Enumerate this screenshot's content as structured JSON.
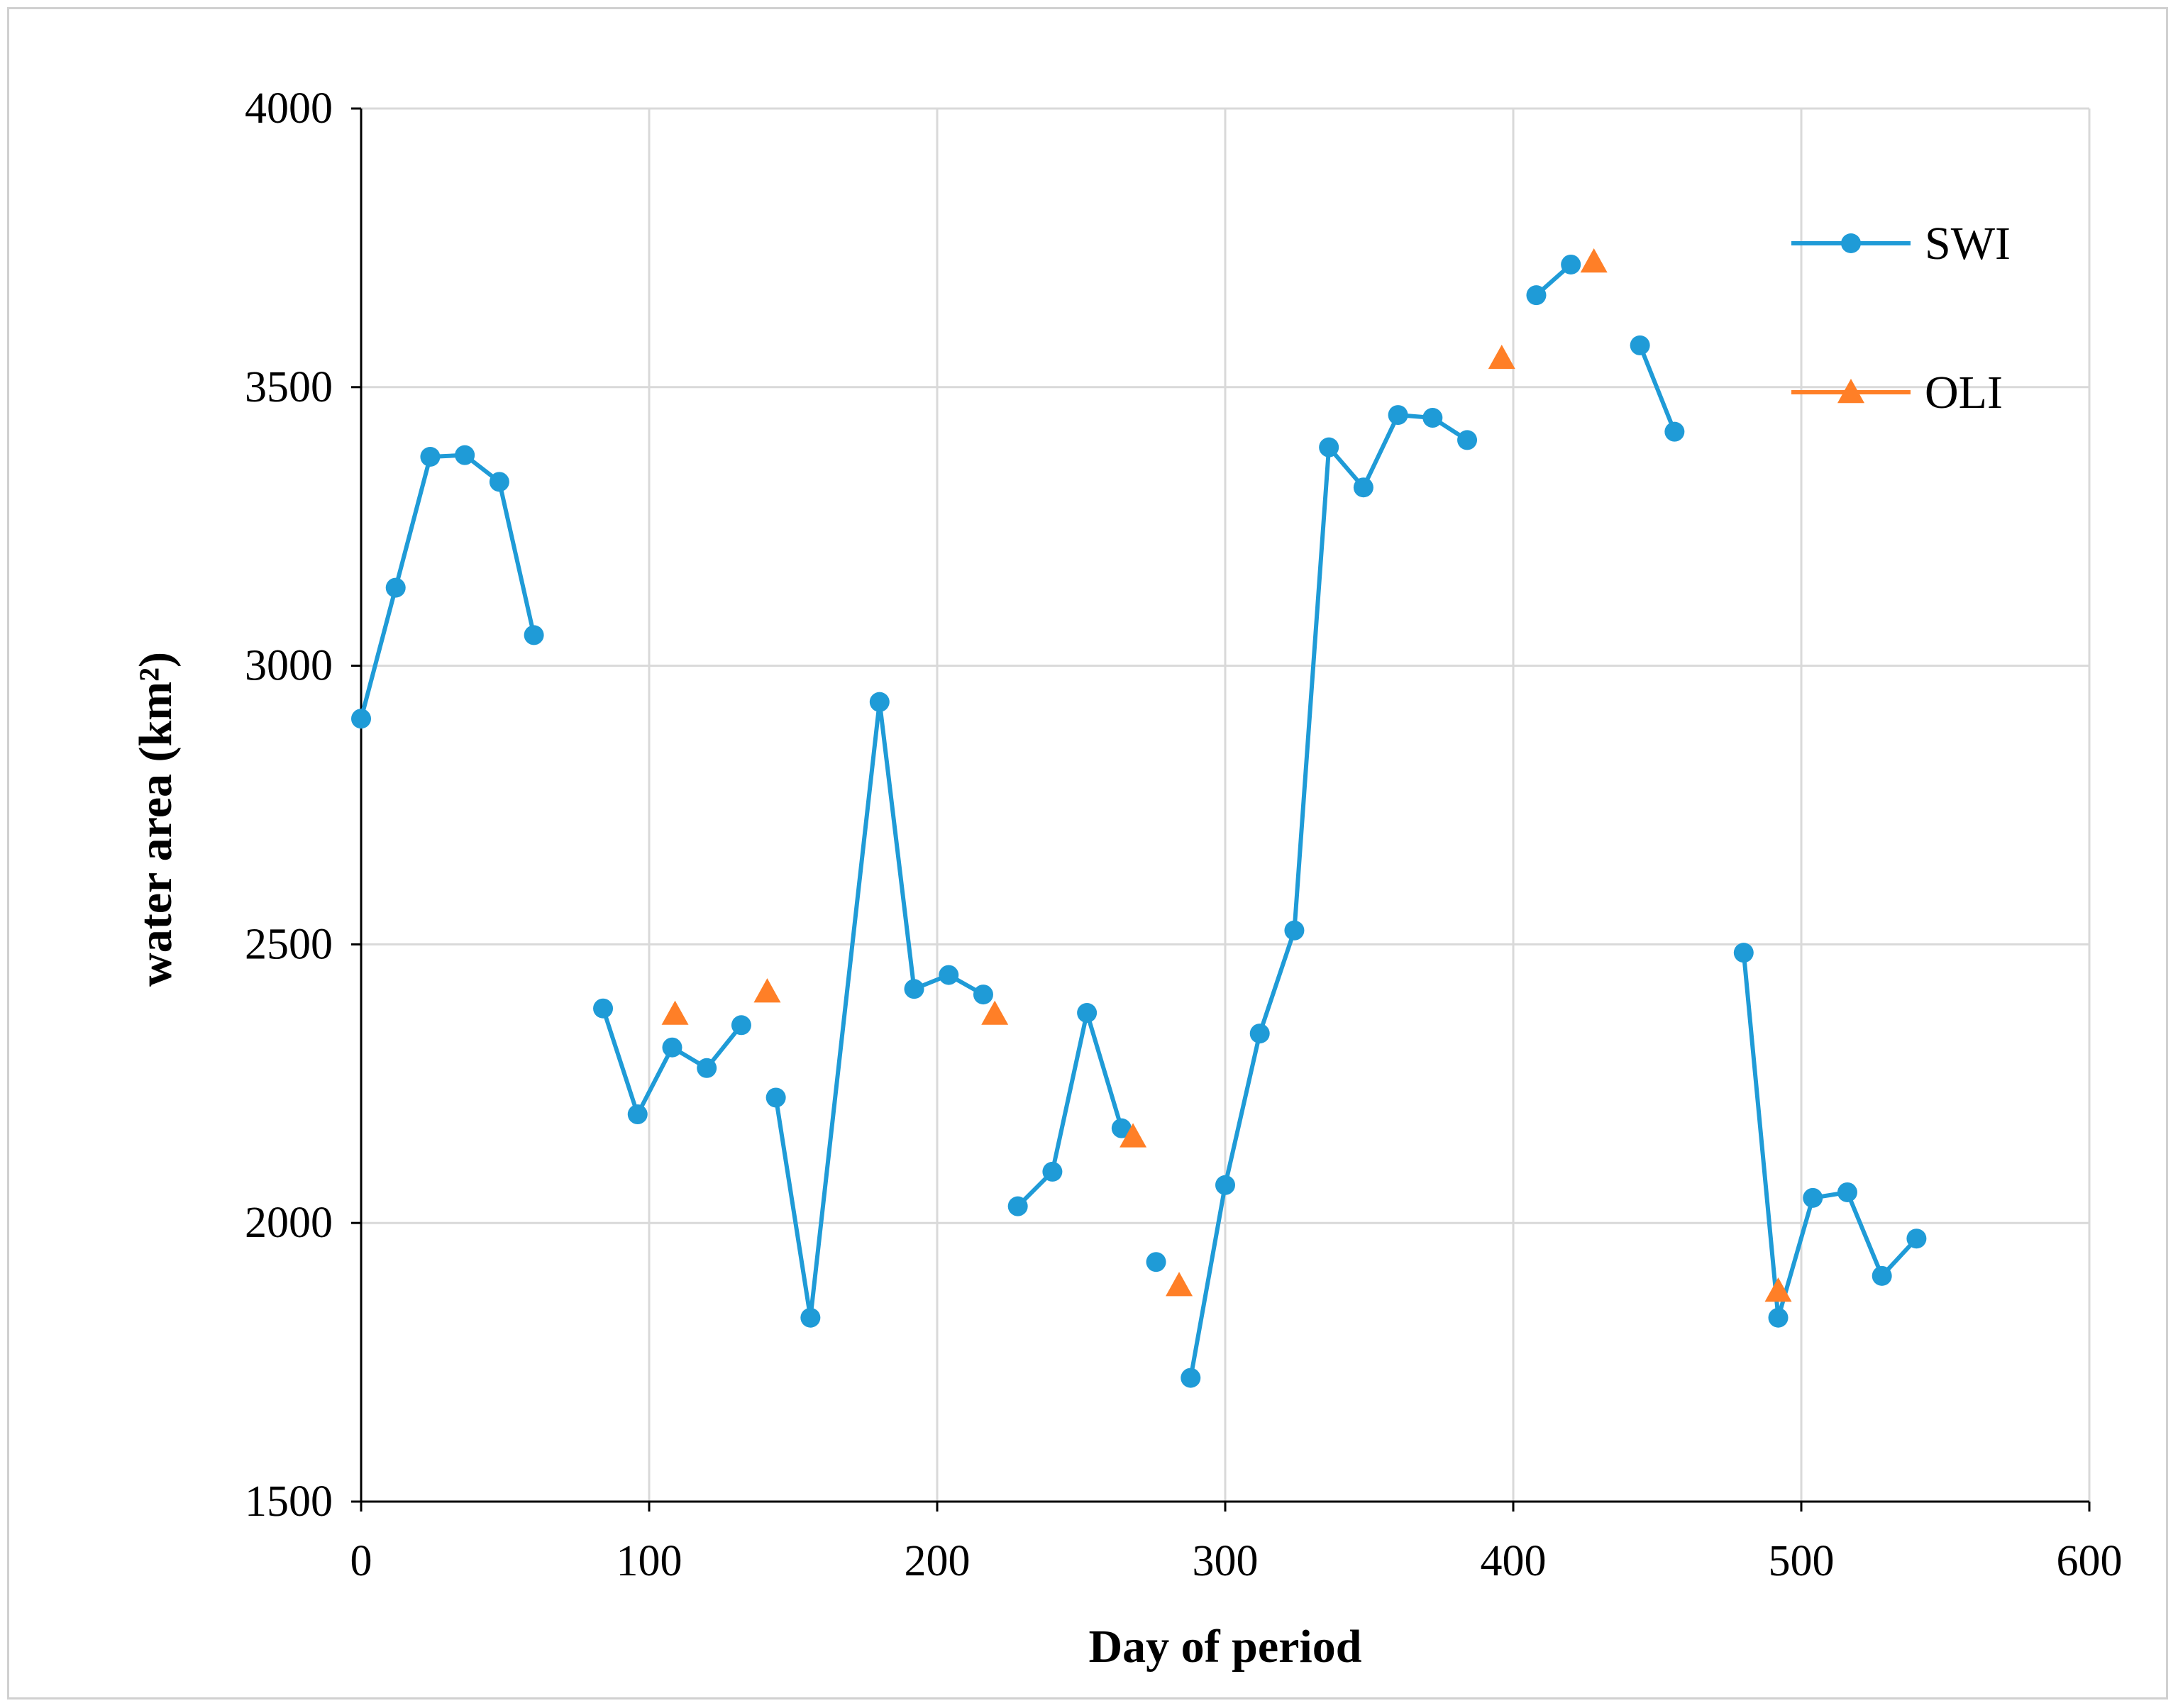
{
  "chart_data": {
    "type": "line",
    "title": "",
    "xlabel": "Day of period",
    "ylabel": "water area (km²)",
    "xlim": [
      0,
      600
    ],
    "ylim": [
      1500,
      4000
    ],
    "xticks": [
      0,
      100,
      200,
      300,
      400,
      500,
      600
    ],
    "yticks": [
      1500,
      2000,
      2500,
      3000,
      3500,
      4000
    ],
    "grid": true,
    "legend_position": "top-right",
    "colors": {
      "SWI": "#1f9bd7",
      "OLI": "#ff7f27",
      "grid": "#d9d9d9",
      "axis": "#000000"
    },
    "series": [
      {
        "name": "SWI",
        "marker": "circle",
        "segments": [
          [
            [
              0,
              2905
            ],
            [
              12,
              3140
            ],
            [
              24,
              3375
            ],
            [
              36,
              3378
            ],
            [
              48,
              3330
            ],
            [
              60,
              3055
            ]
          ],
          [
            [
              84,
              2385
            ],
            [
              96,
              2195
            ],
            [
              108,
              2315
            ],
            [
              120,
              2278
            ],
            [
              132,
              2355
            ]
          ],
          [
            [
              144,
              2225
            ],
            [
              156,
              1830
            ],
            [
              180,
              2935
            ],
            [
              192,
              2420
            ],
            [
              204,
              2445
            ],
            [
              216,
              2410
            ]
          ],
          [
            [
              228,
              2030
            ],
            [
              240,
              2092
            ],
            [
              252,
              2377
            ],
            [
              264,
              2170
            ]
          ],
          [
            [
              276,
              1930
            ]
          ],
          [
            [
              288,
              1722
            ],
            [
              300,
              2068
            ],
            [
              312,
              2340
            ],
            [
              324,
              2525
            ],
            [
              336,
              3392
            ],
            [
              348,
              3320
            ],
            [
              360,
              3450
            ],
            [
              372,
              3445
            ],
            [
              384,
              3405
            ]
          ],
          [
            [
              408,
              3665
            ],
            [
              420,
              3720
            ]
          ],
          [
            [
              444,
              3575
            ],
            [
              456,
              3420
            ]
          ],
          [
            [
              480,
              2485
            ],
            [
              492,
              1830
            ],
            [
              504,
              2045
            ],
            [
              516,
              2055
            ],
            [
              528,
              1905
            ],
            [
              540,
              1972
            ]
          ]
        ]
      },
      {
        "name": "OLI",
        "marker": "triangle",
        "segments": [
          [
            [
              109,
              2375
            ]
          ],
          [
            [
              141,
              2415
            ]
          ],
          [
            [
              220,
              2375
            ]
          ],
          [
            [
              268,
              2155
            ]
          ],
          [
            [
              284,
              1888
            ]
          ],
          [
            [
              396,
              3552
            ]
          ],
          [
            [
              428,
              3725
            ]
          ],
          [
            [
              492,
              1878
            ]
          ]
        ]
      }
    ]
  }
}
